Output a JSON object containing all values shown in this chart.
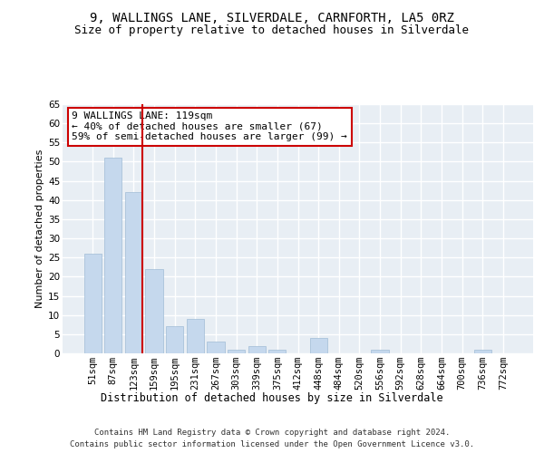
{
  "title1": "9, WALLINGS LANE, SILVERDALE, CARNFORTH, LA5 0RZ",
  "title2": "Size of property relative to detached houses in Silverdale",
  "xlabel": "Distribution of detached houses by size in Silverdale",
  "ylabel": "Number of detached properties",
  "categories": [
    "51sqm",
    "87sqm",
    "123sqm",
    "159sqm",
    "195sqm",
    "231sqm",
    "267sqm",
    "303sqm",
    "339sqm",
    "375sqm",
    "412sqm",
    "448sqm",
    "484sqm",
    "520sqm",
    "556sqm",
    "592sqm",
    "628sqm",
    "664sqm",
    "700sqm",
    "736sqm",
    "772sqm"
  ],
  "values": [
    26,
    51,
    42,
    22,
    7,
    9,
    3,
    1,
    2,
    1,
    0,
    4,
    0,
    0,
    1,
    0,
    0,
    0,
    0,
    1,
    0
  ],
  "bar_color": "#c5d8ed",
  "bar_edgecolor": "#a0bcd6",
  "vline_index": 2,
  "vline_color": "#cc0000",
  "annotation_line1": "9 WALLINGS LANE: 119sqm",
  "annotation_line2": "← 40% of detached houses are smaller (67)",
  "annotation_line3": "59% of semi-detached houses are larger (99) →",
  "annotation_box_color": "#cc0000",
  "ylim": [
    0,
    65
  ],
  "yticks": [
    0,
    5,
    10,
    15,
    20,
    25,
    30,
    35,
    40,
    45,
    50,
    55,
    60,
    65
  ],
  "background_color": "#e8eef4",
  "grid_color": "#ffffff",
  "footer_line1": "Contains HM Land Registry data © Crown copyright and database right 2024.",
  "footer_line2": "Contains public sector information licensed under the Open Government Licence v3.0.",
  "title1_fontsize": 10,
  "title2_fontsize": 9,
  "xlabel_fontsize": 8.5,
  "ylabel_fontsize": 8,
  "tick_fontsize": 7.5,
  "annotation_fontsize": 8,
  "footer_fontsize": 6.5
}
